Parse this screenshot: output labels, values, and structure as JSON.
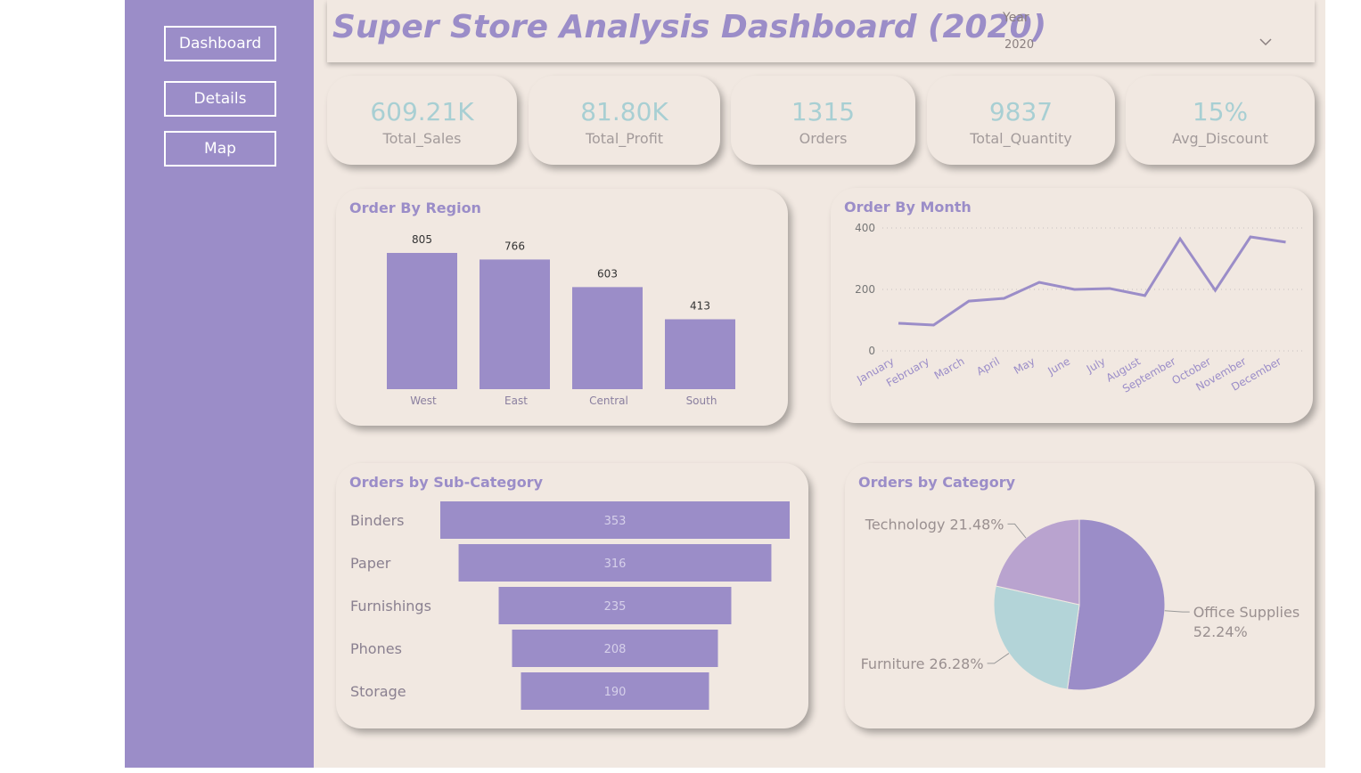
{
  "nav": [
    "Dashboard",
    "Details",
    "Map"
  ],
  "header": {
    "title": "Super Store Analysis Dashboard (2020)",
    "filter_label": "Year",
    "filter_value": "2020"
  },
  "kpis": [
    {
      "value": "609.21K",
      "label": "Total_Sales"
    },
    {
      "value": "81.80K",
      "label": "Total_Profit"
    },
    {
      "value": "1315",
      "label": "Orders"
    },
    {
      "value": "9837",
      "label": "Total_Quantity"
    },
    {
      "value": "15%",
      "label": "Avg_Discount"
    }
  ],
  "chart_data": [
    {
      "type": "bar",
      "title": "Order By Region",
      "categories": [
        "West",
        "East",
        "Central",
        "South"
      ],
      "values": [
        805,
        766,
        603,
        413
      ],
      "color": "#9b8dc8"
    },
    {
      "type": "line",
      "title": "Order By Month",
      "categories": [
        "January",
        "February",
        "March",
        "April",
        "May",
        "June",
        "July",
        "August",
        "September",
        "October",
        "November",
        "December"
      ],
      "values": [
        90,
        84,
        162,
        171,
        223,
        200,
        203,
        180,
        365,
        197,
        371,
        354
      ],
      "color": "#9b8dc8",
      "ylim": [
        0,
        400
      ],
      "yticks": [
        0,
        200,
        400
      ],
      "grid": true
    },
    {
      "type": "funnel",
      "title": "Orders by Sub-Category",
      "categories": [
        "Binders",
        "Paper",
        "Furnishings",
        "Phones",
        "Storage"
      ],
      "values": [
        353,
        316,
        235,
        208,
        190
      ],
      "color": "#9b8dc8"
    },
    {
      "type": "pie",
      "title": "Orders by Category",
      "categories": [
        "Office Supplies",
        "Furniture",
        "Technology"
      ],
      "values": [
        52.24,
        26.28,
        21.48
      ],
      "value_labels": [
        "52.24%",
        "26.28%",
        "21.48%"
      ],
      "colors": [
        "#9b8dc8",
        "#b3d4d8",
        "#b9a3cf"
      ]
    }
  ]
}
